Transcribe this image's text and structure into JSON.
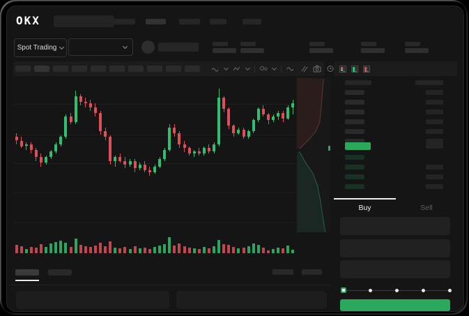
{
  "app": {
    "logo_text": "OKX"
  },
  "colors": {
    "green": "#2aa85c",
    "candle_green": "#2fbf6f",
    "candle_red": "#de4f5a",
    "bid_row_tint": "rgba(47,191,111,0.16)",
    "asks_fill": "rgba(150,55,55,0.16)",
    "asks_stroke": "#5f3535",
    "bids_fill": "rgba(40,130,100,0.15)",
    "bids_stroke": "#2c5c4c",
    "placeholder": "#2b2b2b"
  },
  "top_nav": {
    "nav_item_count": 5
  },
  "sub_header": {
    "market_selector_label": "Spot Trading",
    "ticker_stat_group_count": 5
  },
  "chart_toolbar": {
    "timeframe_button_count": 10,
    "icons": [
      "candle-style-icon",
      "line-type-icon",
      "indicators-icon",
      "compare-icon",
      "draw-icon",
      "camera-icon",
      "history-icon",
      "fullscreen-icon"
    ]
  },
  "chart_data": {
    "type": "candlestick",
    "title": "",
    "grid": "horizontal-only",
    "price_range": [
      40,
      90
    ],
    "candles_ohlc": [
      [
        62,
        64,
        58,
        60
      ],
      [
        60,
        62,
        56,
        57
      ],
      [
        57,
        59,
        55,
        58
      ],
      [
        58,
        59,
        53,
        55
      ],
      [
        55,
        56,
        49,
        51
      ],
      [
        51,
        53,
        46,
        48
      ],
      [
        48,
        52,
        47,
        51
      ],
      [
        51,
        55,
        50,
        54
      ],
      [
        54,
        59,
        53,
        58
      ],
      [
        58,
        63,
        57,
        62
      ],
      [
        62,
        74,
        61,
        73
      ],
      [
        73,
        75,
        69,
        70
      ],
      [
        70,
        87,
        69,
        84
      ],
      [
        84,
        85,
        79,
        81
      ],
      [
        81,
        83,
        78,
        80
      ],
      [
        80,
        82,
        76,
        78
      ],
      [
        78,
        80,
        73,
        75
      ],
      [
        75,
        76,
        63,
        65
      ],
      [
        65,
        67,
        60,
        62
      ],
      [
        62,
        63,
        47,
        49
      ],
      [
        49,
        52,
        46,
        51
      ],
      [
        51,
        53,
        48,
        49
      ],
      [
        49,
        51,
        45,
        47
      ],
      [
        47,
        50,
        46,
        49
      ],
      [
        49,
        50,
        43,
        45
      ],
      [
        45,
        48,
        44,
        47
      ],
      [
        47,
        49,
        43,
        44
      ],
      [
        44,
        46,
        41,
        43
      ],
      [
        43,
        47,
        42,
        46
      ],
      [
        46,
        51,
        45,
        50
      ],
      [
        50,
        56,
        49,
        55
      ],
      [
        55,
        69,
        54,
        67
      ],
      [
        67,
        69,
        62,
        64
      ],
      [
        64,
        65,
        56,
        58
      ],
      [
        58,
        60,
        54,
        56
      ],
      [
        56,
        57,
        52,
        53
      ],
      [
        53,
        55,
        51,
        54
      ],
      [
        54,
        56,
        52,
        53
      ],
      [
        53,
        57,
        52,
        56
      ],
      [
        56,
        58,
        53,
        54
      ],
      [
        54,
        59,
        53,
        58
      ],
      [
        58,
        88,
        57,
        83
      ],
      [
        83,
        84,
        75,
        77
      ],
      [
        77,
        78,
        66,
        68
      ],
      [
        68,
        69,
        62,
        64
      ],
      [
        64,
        67,
        63,
        66
      ],
      [
        66,
        67,
        61,
        62
      ],
      [
        62,
        66,
        61,
        65
      ],
      [
        65,
        72,
        64,
        71
      ],
      [
        71,
        78,
        70,
        77
      ],
      [
        77,
        79,
        73,
        74
      ],
      [
        74,
        75,
        69,
        71
      ],
      [
        71,
        74,
        70,
        73
      ],
      [
        73,
        76,
        71,
        75
      ],
      [
        75,
        76,
        70,
        72
      ],
      [
        72,
        79,
        71,
        78
      ],
      [
        78,
        82,
        74,
        80
      ]
    ],
    "volume": [
      12,
      10,
      6,
      9,
      8,
      13,
      9,
      14,
      16,
      18,
      15,
      9,
      21,
      12,
      10,
      9,
      11,
      15,
      10,
      17,
      8,
      7,
      9,
      6,
      10,
      7,
      8,
      6,
      9,
      11,
      13,
      23,
      11,
      14,
      10,
      8,
      7,
      6,
      9,
      7,
      10,
      19,
      13,
      12,
      9,
      7,
      8,
      10,
      14,
      12,
      8,
      4,
      6,
      8,
      7,
      11,
      5
    ],
    "depth": {
      "asks_line": [
        [
          80,
          1
        ],
        [
          76,
          10
        ],
        [
          73,
          20
        ],
        [
          68,
          29
        ],
        [
          56,
          35
        ],
        [
          32,
          41
        ],
        [
          8,
          46
        ]
      ],
      "bids_line": [
        [
          8,
          48
        ],
        [
          26,
          55
        ],
        [
          48,
          62
        ],
        [
          62,
          70
        ],
        [
          70,
          79
        ],
        [
          76,
          88
        ],
        [
          82,
          96
        ],
        [
          85,
          100
        ]
      ]
    }
  },
  "order_book": {
    "view_modes": [
      "book-both-icon",
      "book-bids-icon",
      "book-asks-icon"
    ],
    "ask_rows": [
      {
        "amount": true
      },
      {
        "amount": true
      },
      {
        "amount": true
      },
      {
        "amount": true
      },
      {
        "amount": true
      },
      {
        "amount": true
      }
    ],
    "last_price_row": {
      "highlight": "green",
      "amount": true
    },
    "bid_rows": [
      {
        "amount": false
      },
      {
        "amount": true
      },
      {
        "amount": true
      },
      {
        "amount": true
      }
    ]
  },
  "trade_panel": {
    "tabs": [
      {
        "label": "Buy",
        "active": true
      },
      {
        "label": "Sell",
        "active": false
      }
    ],
    "field_count": 3,
    "slider": {
      "value_percent": 0,
      "stop_count": 5
    },
    "submit_color": "#2aa85c"
  },
  "bottom_panel": {
    "tab_count": 2,
    "right_link_count": 2,
    "empty_panel_count": 2
  }
}
